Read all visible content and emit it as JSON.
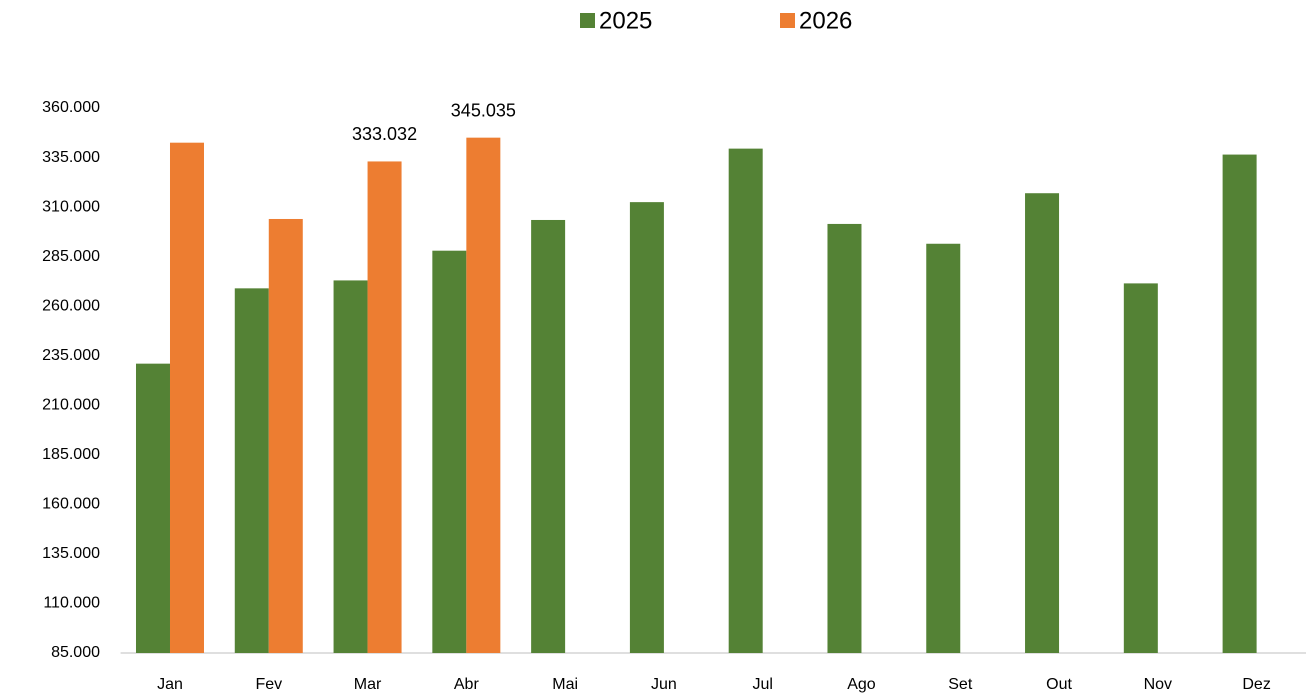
{
  "chart_data": {
    "type": "bar",
    "categories": [
      "Jan",
      "Fev",
      "Mar",
      "Abr",
      "Mai",
      "Jun",
      "Jul",
      "Ago",
      "Set",
      "Out",
      "Nov",
      "Dez"
    ],
    "series": [
      {
        "name": "2025",
        "color": "#548235",
        "values": [
          231000,
          269000,
          273000,
          288000,
          303500,
          312500,
          339500,
          301500,
          291500,
          317000,
          271500,
          336500
        ]
      },
      {
        "name": "2026",
        "color": "#ed7d31",
        "values": [
          342500,
          304000,
          333032,
          345035,
          null,
          null,
          null,
          null,
          null,
          null,
          null,
          null
        ],
        "value_labels": [
          null,
          null,
          "333.032",
          "345.035",
          null,
          null,
          null,
          null,
          null,
          null,
          null,
          null
        ]
      }
    ],
    "ylim": [
      85000,
      360000
    ],
    "yticks": [
      {
        "value": 85000,
        "label": "85.000"
      },
      {
        "value": 110000,
        "label": "110.000"
      },
      {
        "value": 135000,
        "label": "135.000"
      },
      {
        "value": 160000,
        "label": "160.000"
      },
      {
        "value": 185000,
        "label": "185.000"
      },
      {
        "value": 210000,
        "label": "210.000"
      },
      {
        "value": 235000,
        "label": "235.000"
      },
      {
        "value": 260000,
        "label": "260.000"
      },
      {
        "value": 285000,
        "label": "285.000"
      },
      {
        "value": 310000,
        "label": "310.000"
      },
      {
        "value": 335000,
        "label": "335.000"
      },
      {
        "value": 360000,
        "label": "360.000"
      }
    ],
    "grid": false,
    "legend": "top"
  }
}
